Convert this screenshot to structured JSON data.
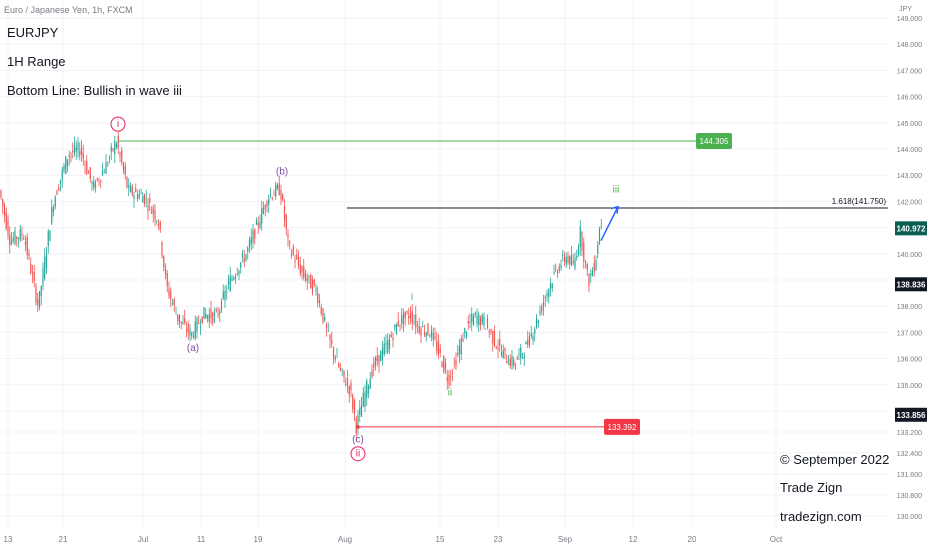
{
  "header": {
    "symbol": "Euro / Japanese Yen, 1h, FXCM",
    "ticker": "EURJPY",
    "range": "1H Range",
    "bottom_line": "Bottom Line: Bullish in wave iii"
  },
  "credits": {
    "date": "© Septemper 2022",
    "name": "Trade Zign",
    "site": "tradezign.com"
  },
  "chart_data": {
    "type": "line",
    "y_axis_unit": "JPY",
    "ylim": [
      129.7,
      150.1
    ],
    "y_ticks": [
      130.0,
      130.8,
      131.6,
      132.4,
      133.2,
      134.0,
      135.0,
      136.0,
      137.0,
      138.0,
      139.0,
      140.0,
      141.0,
      142.0,
      143.0,
      144.0,
      145.0,
      146.0,
      147.0,
      148.0,
      149.0
    ],
    "x_tick_labels": [
      "13",
      "21",
      "Jul",
      "11",
      "19",
      "Aug",
      "15",
      "23",
      "Sep",
      "12",
      "20",
      "Oct"
    ],
    "price_path": [
      [
        0,
        142.6
      ],
      [
        12,
        140.5
      ],
      [
        25,
        140.8
      ],
      [
        40,
        138.0
      ],
      [
        55,
        142.0
      ],
      [
        70,
        143.8
      ],
      [
        82,
        144.0
      ],
      [
        95,
        142.5
      ],
      [
        108,
        143.4
      ],
      [
        118,
        144.3
      ],
      [
        130,
        142.4
      ],
      [
        145,
        142.2
      ],
      [
        160,
        141.3
      ],
      [
        168,
        138.8
      ],
      [
        180,
        137.5
      ],
      [
        193,
        136.9
      ],
      [
        205,
        137.7
      ],
      [
        218,
        137.6
      ],
      [
        232,
        139.0
      ],
      [
        248,
        140.0
      ],
      [
        260,
        141.2
      ],
      [
        270,
        142.2
      ],
      [
        282,
        142.5
      ],
      [
        290,
        140.3
      ],
      [
        305,
        139.2
      ],
      [
        318,
        138.6
      ],
      [
        330,
        136.8
      ],
      [
        342,
        135.5
      ],
      [
        352,
        134.8
      ],
      [
        358,
        133.4
      ],
      [
        366,
        134.6
      ],
      [
        375,
        135.7
      ],
      [
        390,
        136.6
      ],
      [
        400,
        137.4
      ],
      [
        412,
        137.7
      ],
      [
        420,
        137.2
      ],
      [
        432,
        137.0
      ],
      [
        440,
        136.3
      ],
      [
        450,
        135.2
      ],
      [
        458,
        136.0
      ],
      [
        467,
        137.1
      ],
      [
        476,
        137.6
      ],
      [
        486,
        137.4
      ],
      [
        496,
        136.7
      ],
      [
        506,
        136.1
      ],
      [
        515,
        135.8
      ],
      [
        527,
        136.4
      ],
      [
        537,
        137.3
      ],
      [
        548,
        138.5
      ],
      [
        558,
        139.4
      ],
      [
        568,
        139.9
      ],
      [
        575,
        139.5
      ],
      [
        582,
        140.8
      ],
      [
        590,
        138.9
      ],
      [
        597,
        139.7
      ],
      [
        602,
        141.2
      ]
    ],
    "current_price": 140.972,
    "price_markers": [
      138.836,
      133.856
    ],
    "horizontal_levels": [
      {
        "value": 144.305,
        "label": "144.305",
        "color": "#4caf50"
      },
      {
        "value": 133.392,
        "label": "133.392",
        "color": "#f23645"
      },
      {
        "value": 141.75,
        "label": "1.618(141.750)",
        "color": "#131722"
      }
    ],
    "wave_labels": [
      {
        "text": "i",
        "circled": true,
        "color": "#e91e63",
        "x": 118,
        "y": 144.3,
        "pos": "above"
      },
      {
        "text": "(a)",
        "color": "#7b4fa6",
        "x": 193,
        "y": 136.9,
        "pos": "below"
      },
      {
        "text": "(b)",
        "color": "#7b4fa6",
        "x": 282,
        "y": 142.5,
        "pos": "above"
      },
      {
        "text": "(c)",
        "color": "#7b4fa6",
        "x": 358,
        "y": 133.4,
        "pos": "below"
      },
      {
        "text": "ii",
        "circled": true,
        "color": "#e91e63",
        "x": 358,
        "y": 133.4,
        "pos": "below2"
      },
      {
        "text": "i",
        "color": "#4caf50",
        "x": 412,
        "y": 137.7,
        "pos": "above"
      },
      {
        "text": "ii",
        "color": "#4caf50",
        "x": 450,
        "y": 135.2,
        "pos": "below"
      },
      {
        "text": "iii",
        "color": "#4caf50",
        "x": 616,
        "y": 141.8,
        "pos": "above"
      }
    ],
    "projection": {
      "from": [
        601,
        140.5
      ],
      "to": [
        618,
        141.8
      ],
      "color": "#2962ff"
    },
    "colors": {
      "up": "#26a69a",
      "down": "#ef5350",
      "grid": "#f0f3fa",
      "axis_text": "#787b86"
    }
  }
}
